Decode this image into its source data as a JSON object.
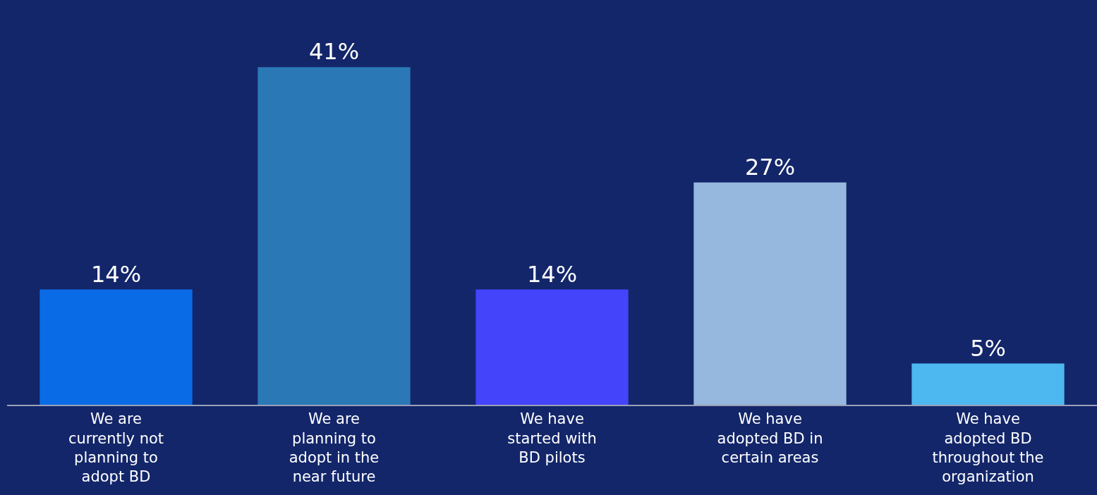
{
  "chart_data": {
    "type": "bar",
    "categories": [
      "We are currently not planning to adopt BD",
      "We are planning to adopt in the near future",
      "We have started with BD pilots",
      "We have adopted BD in certain areas",
      "We have adopted BD throughout the organization"
    ],
    "values": [
      14,
      41,
      14,
      27,
      5
    ],
    "colors": [
      "#0a6be6",
      "#2b78b6",
      "#4444fb",
      "#97b8de",
      "#4db8f0"
    ],
    "value_labels": [
      "14%",
      "41%",
      "14%",
      "27%",
      "5%"
    ],
    "legend": false
  }
}
